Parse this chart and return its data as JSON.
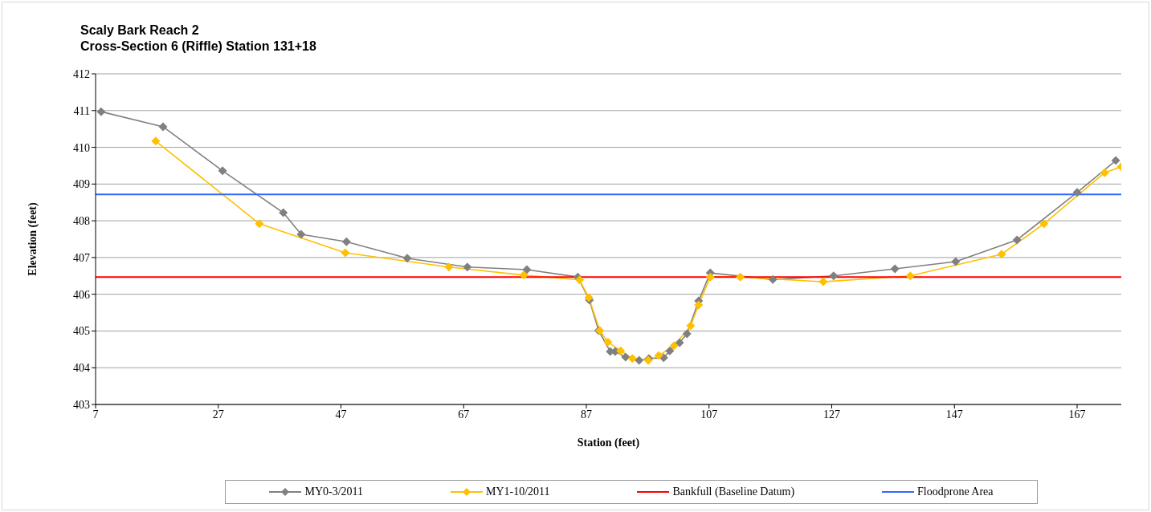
{
  "chart_data": {
    "type": "line",
    "title": "Scaly Bark Reach 2",
    "subtitle": "Cross-Section 6 (Riffle) Station 131+18",
    "xlabel": "Station (feet)",
    "ylabel": "Elevation (feet)",
    "xlim": [
      7,
      174.2
    ],
    "xticks": [
      7,
      27,
      47,
      67,
      87,
      107,
      127,
      147,
      167
    ],
    "ylim": [
      403,
      412
    ],
    "yticks": [
      403,
      404,
      405,
      406,
      407,
      408,
      409,
      410,
      411,
      412
    ],
    "grid": "y",
    "legend": "bottom",
    "series": [
      {
        "name": "MY0-3/2011",
        "color": "#808080",
        "marker": "diamond",
        "x": [
          7.9,
          18.0,
          27.7,
          37.6,
          40.5,
          47.9,
          57.8,
          67.6,
          77.3,
          85.6,
          87.5,
          89.0,
          90.9,
          91.7,
          93.4,
          95.6,
          97.2,
          99.6,
          100.6,
          102.2,
          103.4,
          105.3,
          107.2,
          117.4,
          127.3,
          137.3,
          147.2,
          157.2,
          167.0,
          173.3
        ],
        "values": [
          410.97,
          410.56,
          409.36,
          408.22,
          407.63,
          407.43,
          406.98,
          406.74,
          406.67,
          406.47,
          405.84,
          405.01,
          404.44,
          404.44,
          404.29,
          404.2,
          404.25,
          404.27,
          404.46,
          404.68,
          404.92,
          405.82,
          406.58,
          406.4,
          406.5,
          406.69,
          406.89,
          407.48,
          408.77,
          409.64
        ]
      },
      {
        "name": "MY1-10/2011",
        "color": "#ffc000",
        "marker": "diamond",
        "x": [
          16.8,
          33.7,
          47.7,
          64.6,
          76.8,
          85.9,
          87.4,
          89.2,
          90.5,
          92.6,
          94.5,
          97.1,
          98.8,
          101.3,
          104.0,
          105.3,
          107.2,
          112.1,
          125.6,
          139.8,
          154.7,
          161.6,
          171.5,
          174.2
        ],
        "values": [
          410.17,
          407.92,
          407.13,
          406.74,
          406.52,
          406.39,
          405.91,
          405.01,
          404.7,
          404.46,
          404.25,
          404.2,
          404.33,
          404.6,
          405.14,
          405.71,
          406.47,
          406.47,
          406.34,
          406.5,
          407.09,
          407.92,
          409.31,
          409.47
        ]
      },
      {
        "name": "Bankfull (Baseline Datum)",
        "color": "#ff0000",
        "marker": "none",
        "x": [
          7,
          174.2
        ],
        "values": [
          406.47,
          406.47
        ]
      },
      {
        "name": "Floodprone Area",
        "color": "#3366ff",
        "marker": "none",
        "x": [
          7,
          174.2
        ],
        "values": [
          408.72,
          408.72
        ]
      }
    ]
  }
}
